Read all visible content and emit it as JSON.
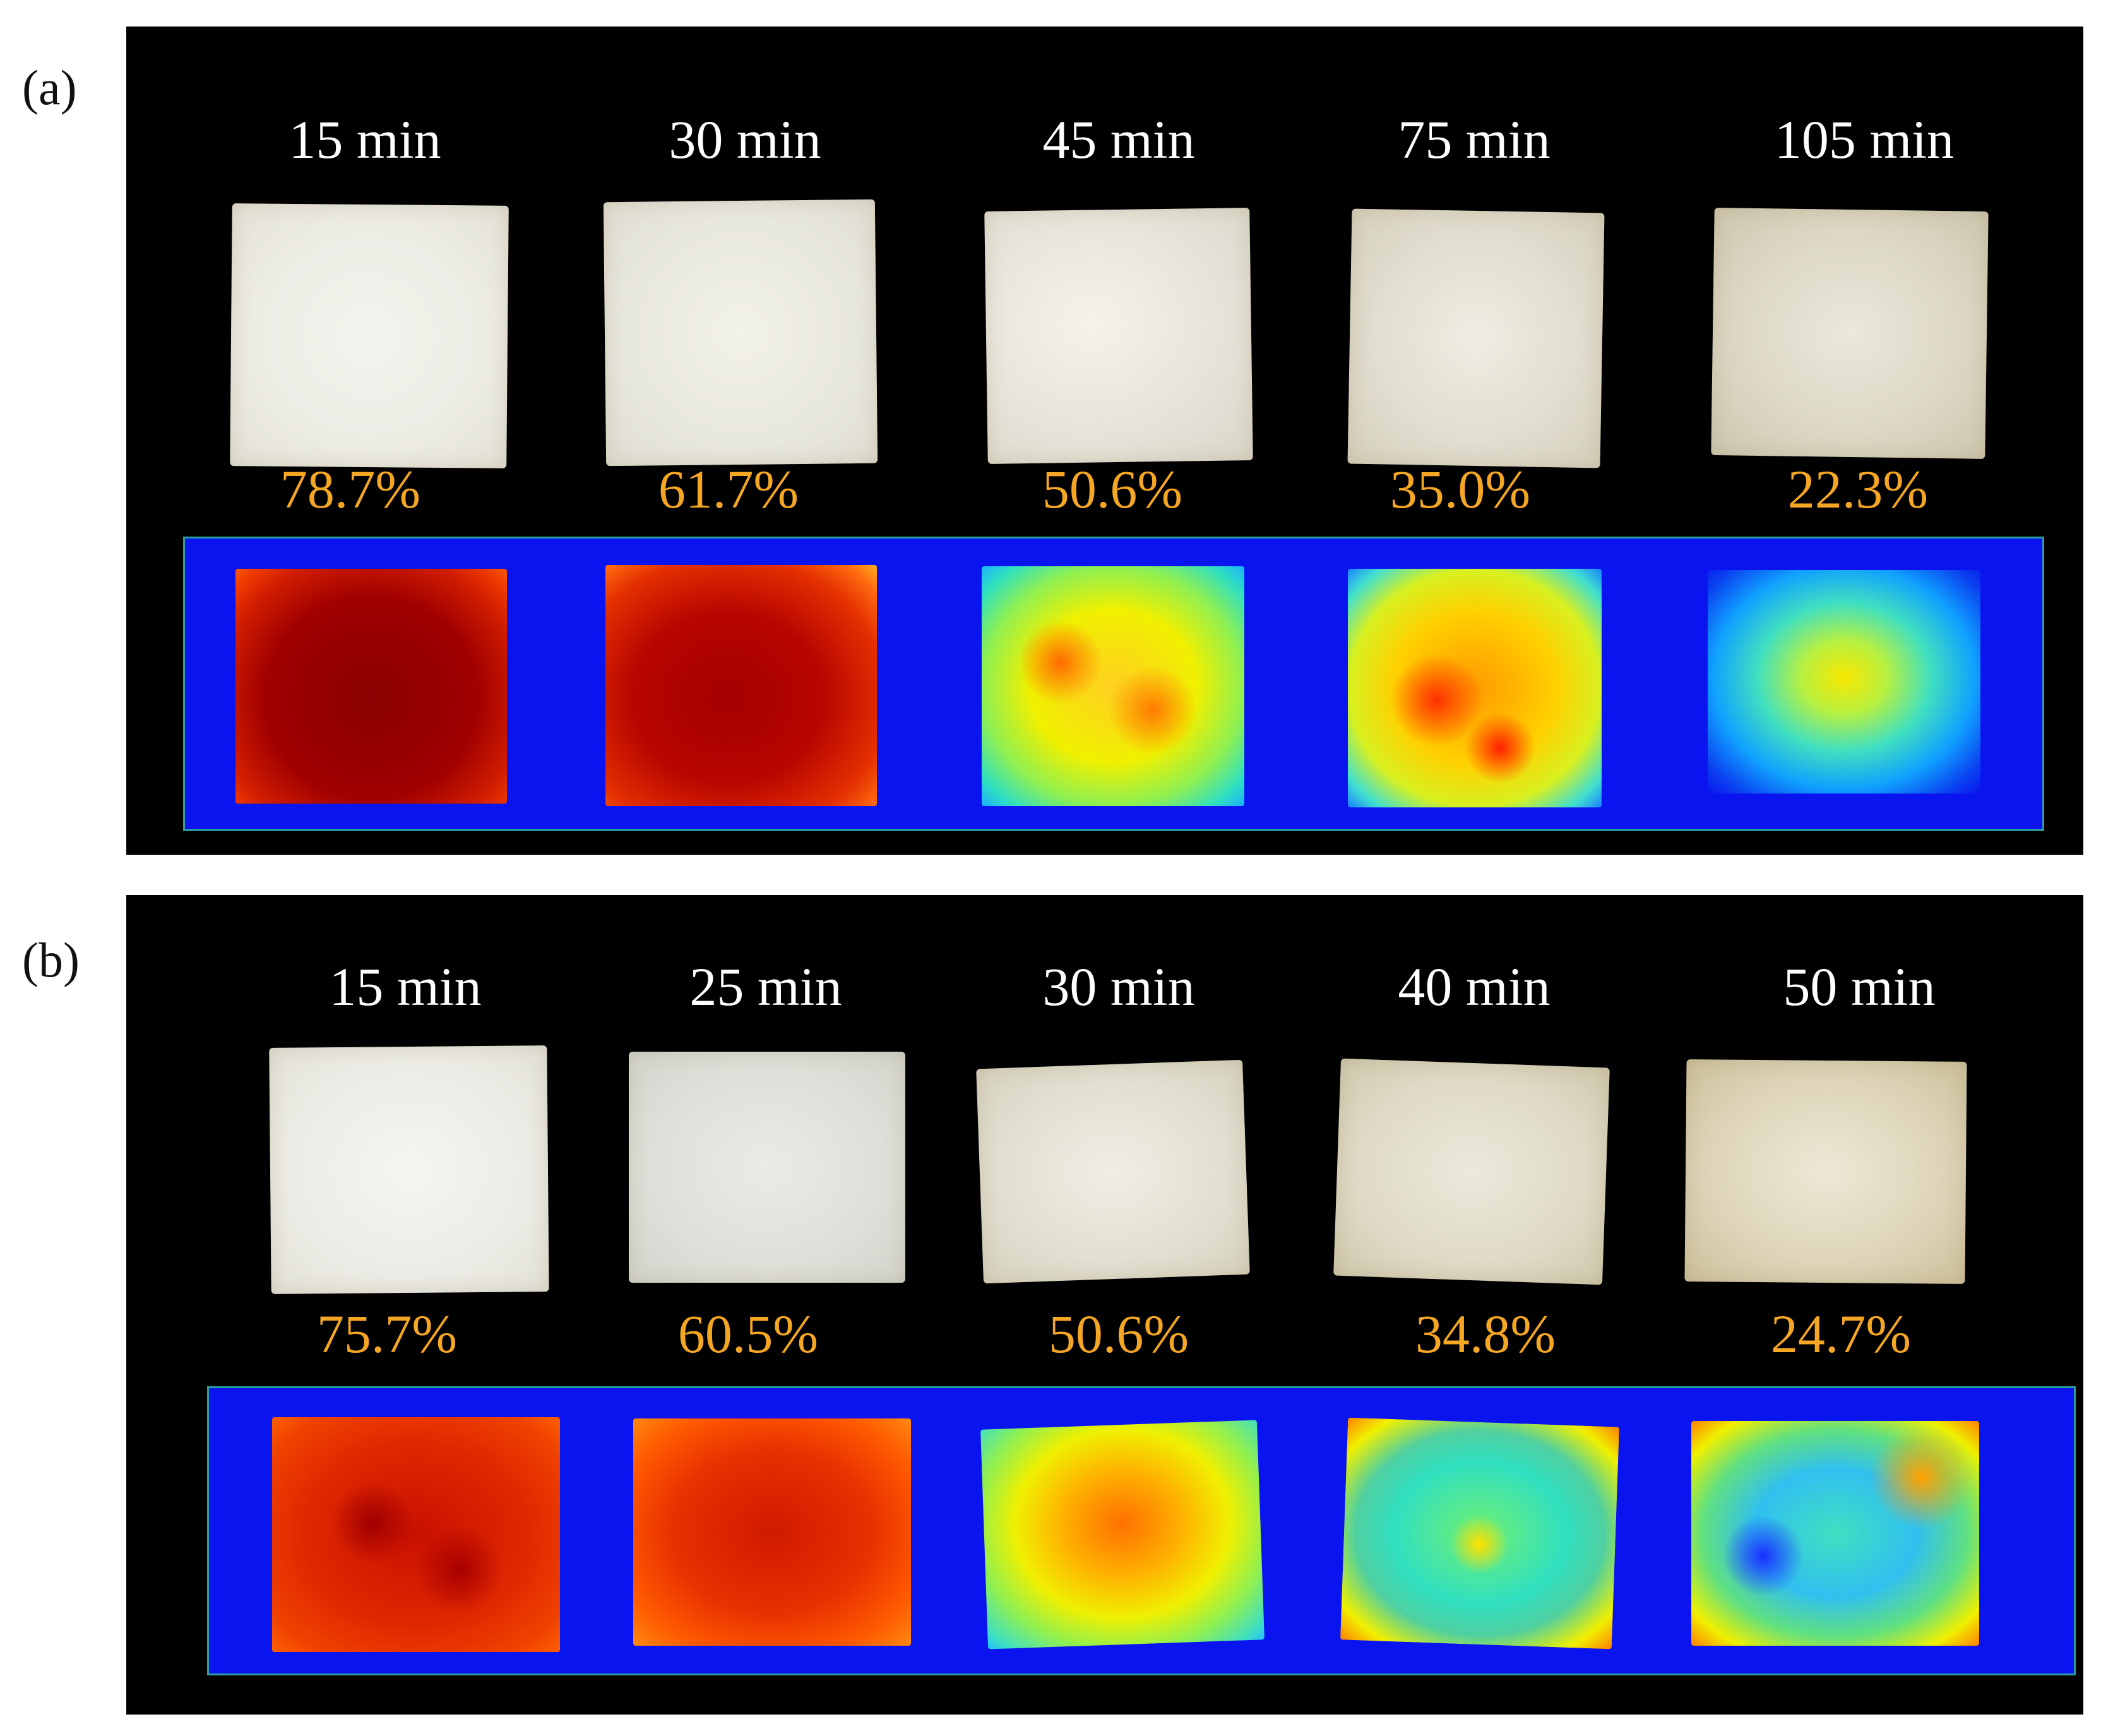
{
  "panel_a": {
    "label": "(a)",
    "samples": [
      {
        "time": "15 min",
        "moisture": "78.7%"
      },
      {
        "time": "30 min",
        "moisture": "61.7%"
      },
      {
        "time": "45 min",
        "moisture": "50.6%"
      },
      {
        "time": "75 min",
        "moisture": "35.0%"
      },
      {
        "time": "105  min",
        "moisture": "22.3%"
      }
    ]
  },
  "panel_b": {
    "label": "(b)",
    "samples": [
      {
        "time": "15 min",
        "moisture": "75.7%"
      },
      {
        "time": "25 min",
        "moisture": "60.5%"
      },
      {
        "time": "30 min",
        "moisture": "50.6%"
      },
      {
        "time": "40 min",
        "moisture": "34.8%"
      },
      {
        "time": "50  min",
        "moisture": "24.7%"
      }
    ]
  },
  "colors": {
    "panel_background": "#000000",
    "time_label": "#ffffff",
    "moisture_label": "#f5a623",
    "heatmap_background": "#0a14ee"
  }
}
